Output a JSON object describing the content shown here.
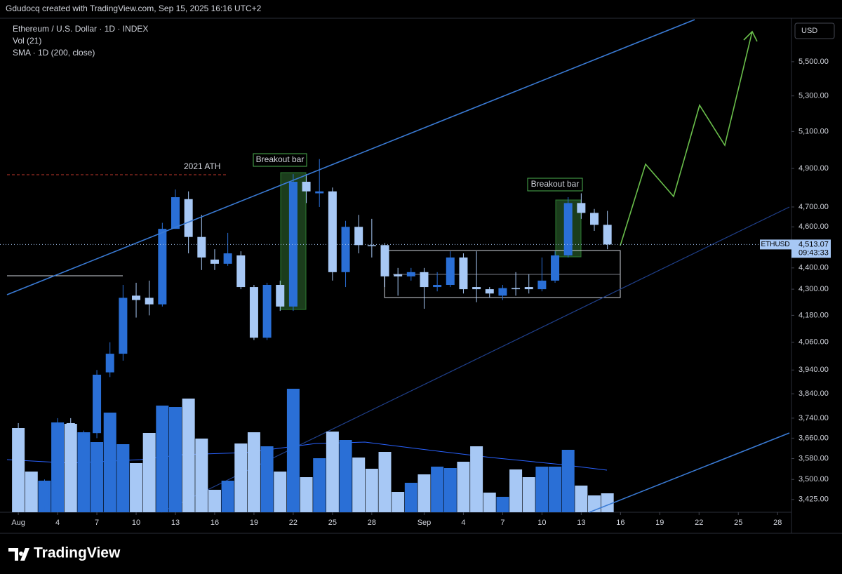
{
  "header": {
    "attribution": "Gdudocq created with TradingView.com, Sep 15, 2025 16:16 UTC+2"
  },
  "chart_data": {
    "type": "candlestick",
    "title": "Ethereum / U.S. Dollar · 1D · INDEX",
    "indicators": [
      "Vol (21)",
      "SMA · 1D (200, close)"
    ],
    "currency": "USD",
    "series": {
      "name": "ETHUSD",
      "up_color": "#2a6fd6",
      "down_color": "#a7c8f5",
      "open": [
        3700,
        3480,
        3400,
        3490,
        3720,
        3610,
        3680,
        3930,
        4010,
        4270,
        4260,
        4230,
        4590,
        4740,
        4550,
        4440,
        4420,
        4460,
        4310,
        4080,
        4320,
        4220,
        4830,
        4770,
        4780,
        4380,
        4600,
        4510,
        4510,
        4370,
        4360,
        4380,
        4310,
        4320,
        4450,
        4310,
        4300,
        4270,
        4305,
        4310,
        4300,
        4340,
        4460,
        4720,
        4670,
        4610
      ],
      "high": [
        3720,
        3500,
        3500,
        3740,
        3740,
        3690,
        3940,
        4060,
        4320,
        4330,
        4340,
        4620,
        4790,
        4780,
        4660,
        4490,
        4570,
        4480,
        4320,
        4330,
        4340,
        4870,
        4870,
        4950,
        4800,
        4630,
        4660,
        4640,
        4520,
        4400,
        4400,
        4400,
        4380,
        4480,
        4470,
        4480,
        4310,
        4320,
        4380,
        4370,
        4450,
        4480,
        4750,
        4770,
        4690,
        4680
      ],
      "low": [
        3460,
        3400,
        3380,
        3480,
        3580,
        3580,
        3660,
        3910,
        3980,
        4170,
        4180,
        4220,
        4590,
        4470,
        4390,
        4390,
        4410,
        4300,
        4070,
        4070,
        4200,
        4200,
        4720,
        4700,
        4340,
        4310,
        4470,
        4450,
        4310,
        4270,
        4340,
        4210,
        4290,
        4310,
        4280,
        4240,
        4260,
        4250,
        4270,
        4280,
        4290,
        4330,
        4450,
        4640,
        4580,
        4490
      ],
      "close": [
        3480,
        3400,
        3490,
        3720,
        3610,
        3680,
        3920,
        4010,
        4260,
        4250,
        4230,
        4590,
        4750,
        4550,
        4450,
        4420,
        4470,
        4310,
        4080,
        4320,
        4220,
        4830,
        4780,
        4780,
        4380,
        4600,
        4510,
        4505,
        4360,
        4360,
        4380,
        4310,
        4320,
        4450,
        4300,
        4300,
        4280,
        4305,
        4300,
        4300,
        4340,
        4460,
        4720,
        4670,
        4610,
        4513
      ]
    },
    "volume": {
      "name": "Vol (21)",
      "values": [
        120,
        58,
        45,
        128,
        126,
        114,
        100,
        142,
        97,
        70,
        113,
        152,
        150,
        162,
        105,
        32,
        45,
        98,
        114,
        94,
        58,
        176,
        50,
        77,
        115,
        103,
        78,
        62,
        86,
        29,
        42,
        54,
        65,
        63,
        72,
        94,
        28,
        22,
        61,
        50,
        65,
        65,
        89,
        38,
        24,
        27
      ]
    },
    "volume_lim": [
      0,
      180
    ],
    "log": true,
    "ylim": [
      3378,
      5769
    ],
    "yticks": [
      {
        "value": 5500,
        "label": "5,500.00"
      },
      {
        "value": 5300,
        "label": "5,300.00"
      },
      {
        "value": 5100,
        "label": "5,100.00"
      },
      {
        "value": 4900,
        "label": "4,900.00"
      },
      {
        "value": 4700,
        "label": "4,700.00"
      },
      {
        "value": 4600,
        "label": "4,600.00"
      },
      {
        "value": 4400,
        "label": "4,400.00"
      },
      {
        "value": 4300,
        "label": "4,300.00"
      },
      {
        "value": 4180,
        "label": "4,180.00"
      },
      {
        "value": 4060,
        "label": "4,060.00"
      },
      {
        "value": 3940,
        "label": "3,940.00"
      },
      {
        "value": 3840,
        "label": "3,840.00"
      },
      {
        "value": 3740,
        "label": "3,740.00"
      },
      {
        "value": 3660,
        "label": "3,660.00"
      },
      {
        "value": 3580,
        "label": "3,580.00"
      },
      {
        "value": 3500,
        "label": "3,500.00"
      },
      {
        "value": 3425,
        "label": "3,425.00"
      }
    ],
    "xlim": [
      -1.4,
      58.9
    ],
    "xticks": [
      {
        "value": 0,
        "label": "Aug"
      },
      {
        "value": 3,
        "label": "4"
      },
      {
        "value": 6,
        "label": "7"
      },
      {
        "value": 9,
        "label": "10"
      },
      {
        "value": 12,
        "label": "13"
      },
      {
        "value": 15,
        "label": "16"
      },
      {
        "value": 18,
        "label": "19"
      },
      {
        "value": 21,
        "label": "22"
      },
      {
        "value": 24,
        "label": "25"
      },
      {
        "value": 27,
        "label": "28"
      },
      {
        "value": 31,
        "label": "Sep"
      },
      {
        "value": 34,
        "label": "4"
      },
      {
        "value": 37,
        "label": "7"
      },
      {
        "value": 40,
        "label": "10"
      },
      {
        "value": 43,
        "label": "13"
      },
      {
        "value": 46,
        "label": "16"
      },
      {
        "value": 49,
        "label": "19"
      },
      {
        "value": 52,
        "label": "22"
      },
      {
        "value": 55,
        "label": "25"
      },
      {
        "value": 58,
        "label": "28"
      }
    ],
    "last_price": {
      "value": 4513.07,
      "label": "4,513.07"
    },
    "countdown": "09:43:33",
    "annotations": [
      "2021 ATH",
      "Breakout bar",
      "Breakout bar"
    ]
  },
  "footer": {
    "brand": "TradingView"
  }
}
